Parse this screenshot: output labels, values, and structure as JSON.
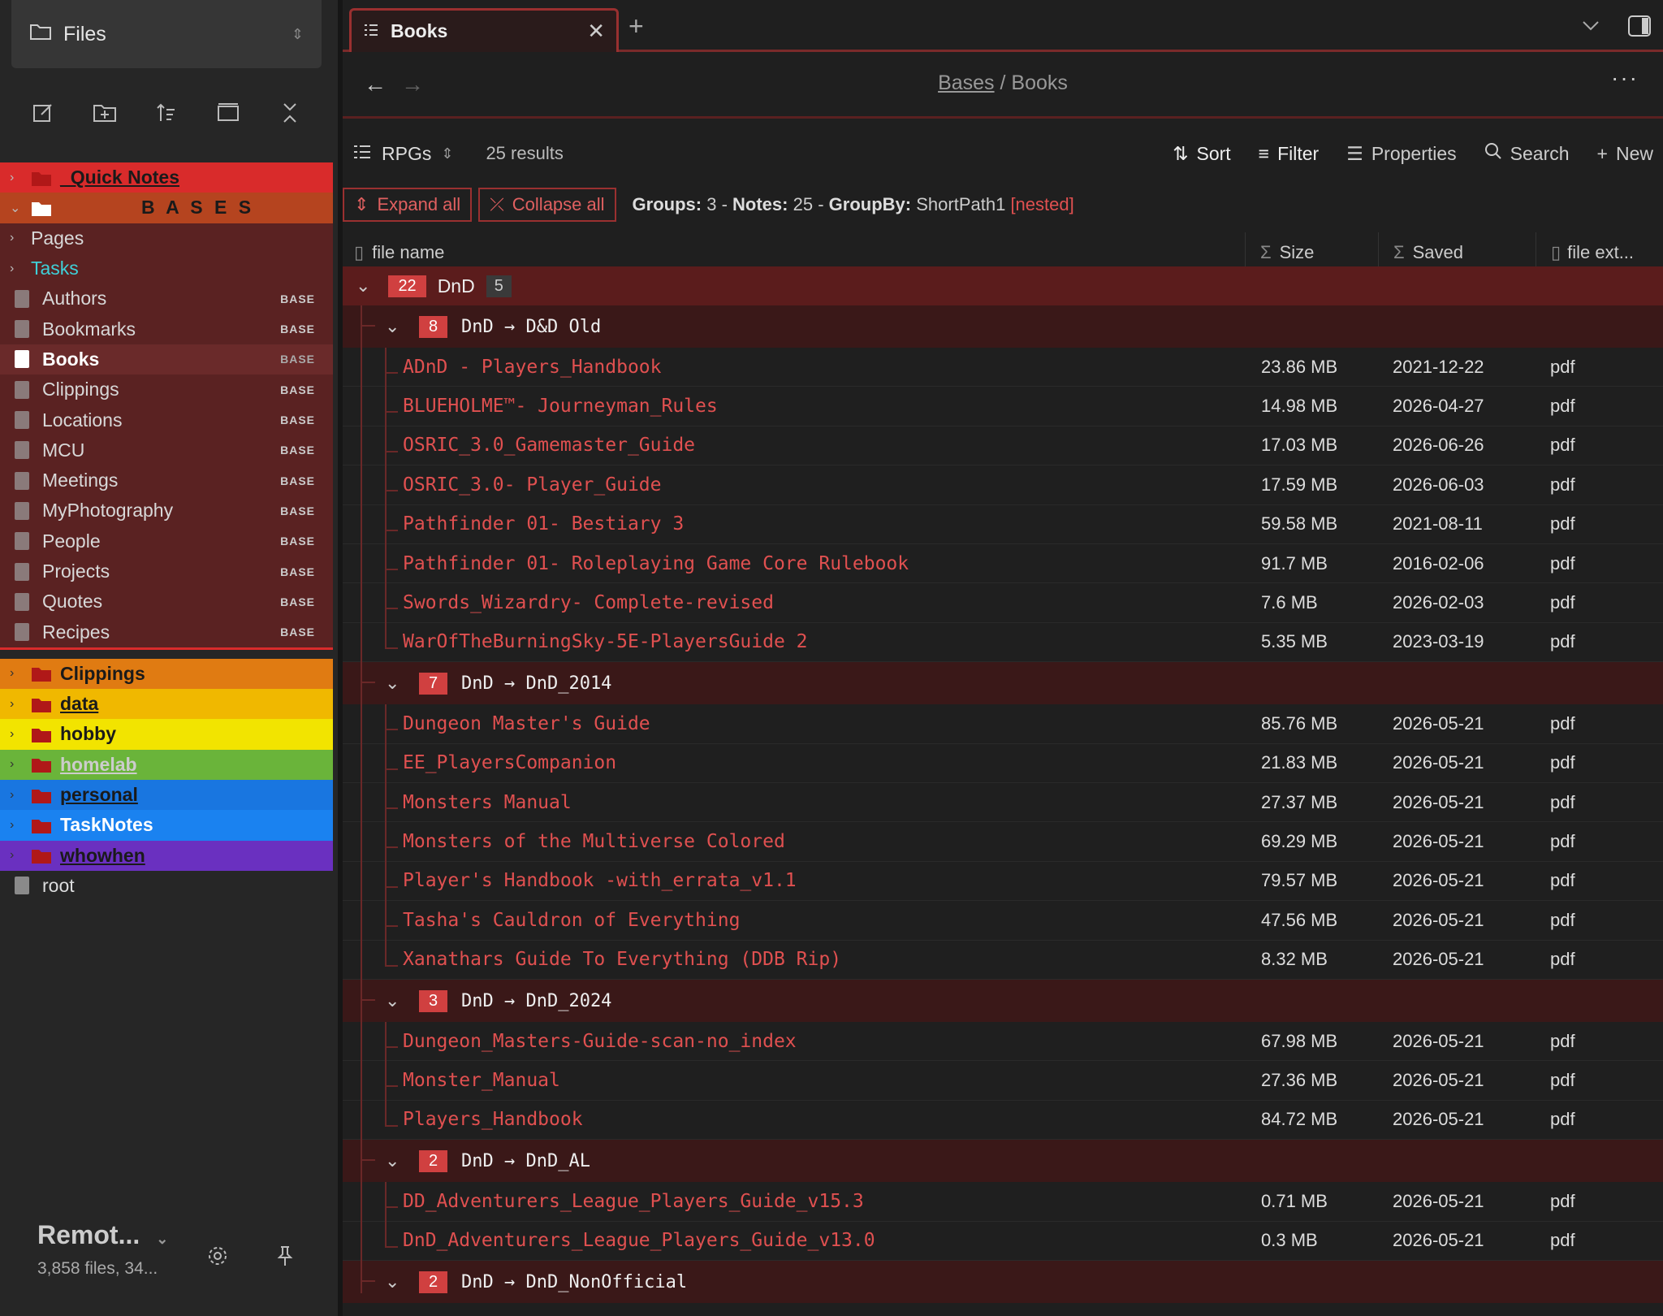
{
  "sidebar": {
    "title": "Files",
    "items": [
      {
        "label": "_Quick Notes",
        "bg": "#d92b2b",
        "type": "folder",
        "arrow": "›",
        "style": "bold-ul"
      },
      {
        "label": "B A S E S",
        "bg": "#b5441f",
        "type": "folder-white",
        "arrow": "⌄",
        "style": "bases"
      },
      {
        "label": "Pages",
        "bg": "#5a2222",
        "type": "none",
        "arrow": "›",
        "style": "plain"
      },
      {
        "label": "Tasks",
        "bg": "#5a2222",
        "type": "none",
        "arrow": "›",
        "style": "cyan"
      },
      {
        "label": "Authors",
        "bg": "#5a2222",
        "type": "doc",
        "badge": "BASE"
      },
      {
        "label": "Bookmarks",
        "bg": "#5a2222",
        "type": "doc",
        "badge": "BASE"
      },
      {
        "label": "Books",
        "bg": "#6a2a2a",
        "type": "doc-active",
        "badge": "BASE",
        "style": "bold"
      },
      {
        "label": "Clippings",
        "bg": "#5a2222",
        "type": "doc",
        "badge": "BASE"
      },
      {
        "label": "Locations",
        "bg": "#5a2222",
        "type": "doc",
        "badge": "BASE"
      },
      {
        "label": "MCU",
        "bg": "#5a2222",
        "type": "doc",
        "badge": "BASE"
      },
      {
        "label": "Meetings",
        "bg": "#5a2222",
        "type": "doc",
        "badge": "BASE"
      },
      {
        "label": "MyPhotography",
        "bg": "#5a2222",
        "type": "doc",
        "badge": "BASE"
      },
      {
        "label": "People",
        "bg": "#5a2222",
        "type": "doc",
        "badge": "BASE"
      },
      {
        "label": "Projects",
        "bg": "#5a2222",
        "type": "doc",
        "badge": "BASE"
      },
      {
        "label": "Quotes",
        "bg": "#5a2222",
        "type": "doc",
        "badge": "BASE"
      },
      {
        "label": "Recipes",
        "bg": "#5a2222",
        "type": "doc",
        "badge": "BASE"
      }
    ],
    "colored_folders": [
      {
        "label": "Clippings",
        "bg": "#e07b12",
        "color": "#1a1a1a"
      },
      {
        "label": "data",
        "bg": "#f0b800",
        "color": "#1a1a1a",
        "ul": true
      },
      {
        "label": "hobby",
        "bg": "#f2e400",
        "color": "#1a1a1a"
      },
      {
        "label": "homelab",
        "bg": "#6ab43a",
        "color": "#cccccc",
        "ul": true
      },
      {
        "label": "personal",
        "bg": "#1976e0",
        "color": "#1a1a1a",
        "ul": true
      },
      {
        "label": "TaskNotes",
        "bg": "#1a82f0",
        "color": "#ffffff"
      },
      {
        "label": "whowhen",
        "bg": "#6a30c0",
        "color": "#1a1a1a",
        "ul": true
      }
    ],
    "root": "root",
    "footer": {
      "vault": "Remot...",
      "stats": "3,858 files, 34..."
    }
  },
  "tab": {
    "title": "Books"
  },
  "breadcrumb": {
    "parent": "Bases",
    "sep": "/",
    "current": "Books"
  },
  "toolbar": {
    "view": "RPGs",
    "results": "25 results",
    "sort": "Sort",
    "filter": "Filter",
    "properties": "Properties",
    "search": "Search",
    "new": "New"
  },
  "groupbar": {
    "expand": "Expand all",
    "collapse": "Collapse all",
    "groups_label": "Groups:",
    "groups": "3",
    "notes_label": "Notes:",
    "notes": "25",
    "groupby_label": "GroupBy:",
    "groupby": "ShortPath1",
    "nested": "[nested]"
  },
  "columns": {
    "name": "file name",
    "size": "Size",
    "saved": "Saved",
    "ext": "file ext..."
  },
  "top_group": {
    "count": "22",
    "label": "DnD",
    "sub": "5"
  },
  "groups": [
    {
      "count": "8",
      "label": "DnD → D&D Old",
      "rows": [
        {
          "name": "ADnD - Players_Handbook",
          "size": "23.86 MB",
          "saved": "2021-12-22",
          "ext": "pdf"
        },
        {
          "name": "BLUEHOLME™- Journeyman_Rules",
          "size": "14.98 MB",
          "saved": "2026-04-27",
          "ext": "pdf"
        },
        {
          "name": "OSRIC_3.0_Gamemaster_Guide",
          "size": "17.03 MB",
          "saved": "2026-06-26",
          "ext": "pdf"
        },
        {
          "name": "OSRIC_3.0- Player_Guide",
          "size": "17.59 MB",
          "saved": "2026-06-03",
          "ext": "pdf"
        },
        {
          "name": "Pathfinder 01- Bestiary 3",
          "size": "59.58 MB",
          "saved": "2021-08-11",
          "ext": "pdf"
        },
        {
          "name": "Pathfinder 01- Roleplaying Game Core Rulebook",
          "size": "91.7 MB",
          "saved": "2016-02-06",
          "ext": "pdf"
        },
        {
          "name": "Swords_Wizardry- Complete-revised",
          "size": "7.6 MB",
          "saved": "2026-02-03",
          "ext": "pdf"
        },
        {
          "name": "WarOfTheBurningSky-5E-PlayersGuide 2",
          "size": "5.35 MB",
          "saved": "2023-03-19",
          "ext": "pdf"
        }
      ]
    },
    {
      "count": "7",
      "label": "DnD → DnD_2014",
      "rows": [
        {
          "name": "Dungeon Master's Guide",
          "size": "85.76 MB",
          "saved": "2026-05-21",
          "ext": "pdf"
        },
        {
          "name": "EE_PlayersCompanion",
          "size": "21.83 MB",
          "saved": "2026-05-21",
          "ext": "pdf"
        },
        {
          "name": "Monsters Manual",
          "size": "27.37 MB",
          "saved": "2026-05-21",
          "ext": "pdf"
        },
        {
          "name": "Monsters of the Multiverse Colored",
          "size": "69.29 MB",
          "saved": "2026-05-21",
          "ext": "pdf"
        },
        {
          "name": "Player's Handbook -with_errata_v1.1",
          "size": "79.57 MB",
          "saved": "2026-05-21",
          "ext": "pdf"
        },
        {
          "name": "Tasha's Cauldron of Everything",
          "size": "47.56 MB",
          "saved": "2026-05-21",
          "ext": "pdf"
        },
        {
          "name": "Xanathars Guide To Everything (DDB Rip)",
          "size": "8.32 MB",
          "saved": "2026-05-21",
          "ext": "pdf"
        }
      ]
    },
    {
      "count": "3",
      "label": "DnD → DnD_2024",
      "rows": [
        {
          "name": "Dungeon_Masters-Guide-scan-no_index",
          "size": "67.98 MB",
          "saved": "2026-05-21",
          "ext": "pdf"
        },
        {
          "name": "Monster_Manual",
          "size": "27.36 MB",
          "saved": "2026-05-21",
          "ext": "pdf"
        },
        {
          "name": "Players_Handbook",
          "size": "84.72 MB",
          "saved": "2026-05-21",
          "ext": "pdf"
        }
      ]
    },
    {
      "count": "2",
      "label": "DnD → DnD_AL",
      "rows": [
        {
          "name": "DD_Adventurers_League_Players_Guide_v15.3",
          "size": "0.71 MB",
          "saved": "2026-05-21",
          "ext": "pdf"
        },
        {
          "name": "DnD_Adventurers_League_Players_Guide_v13.0",
          "size": "0.3 MB",
          "saved": "2026-05-21",
          "ext": "pdf"
        }
      ]
    },
    {
      "count": "2",
      "label": "DnD → DnD_NonOfficial",
      "rows": []
    }
  ]
}
